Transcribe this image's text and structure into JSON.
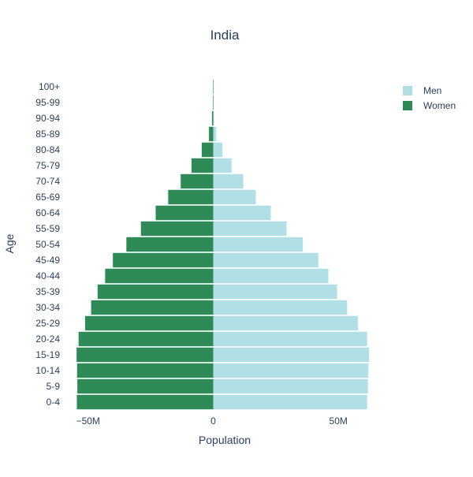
{
  "chart_data": {
    "type": "bar",
    "orientation": "horizontal",
    "layout": "population-pyramid",
    "title": "India",
    "xlabel": "Population",
    "ylabel": "Age",
    "categories": [
      "0-4",
      "5-9",
      "10-14",
      "15-19",
      "20-24",
      "25-29",
      "30-34",
      "35-39",
      "40-44",
      "45-49",
      "50-54",
      "55-59",
      "60-64",
      "65-69",
      "70-74",
      "75-79",
      "80-84",
      "85-89",
      "90-94",
      "95-99",
      "100+"
    ],
    "series": [
      {
        "name": "Men",
        "color": "#b0e0e6",
        "values": [
          61.5,
          61.8,
          62.0,
          62.3,
          61.5,
          57.8,
          53.5,
          49.5,
          46.0,
          42.0,
          35.8,
          29.3,
          23.0,
          17.0,
          12.0,
          7.3,
          3.7,
          1.2,
          0.3,
          0.1,
          0.02
        ]
      },
      {
        "name": "Women",
        "color": "#2e8b57",
        "values": [
          -54.5,
          -54.3,
          -54.4,
          -54.6,
          -53.8,
          -51.2,
          -48.8,
          -46.2,
          -43.2,
          -40.1,
          -34.7,
          -28.9,
          -23.0,
          -18.0,
          -13.0,
          -8.7,
          -4.6,
          -1.7,
          -0.5,
          -0.1,
          -0.02
        ]
      }
    ],
    "xticks": [
      -50,
      0,
      50
    ],
    "xtick_labels": [
      "−50M",
      "0",
      "50M"
    ],
    "value_unit": "millions",
    "xlim": [
      -60,
      66
    ],
    "barmode": "overlay",
    "legend": "top-right",
    "grid": false
  }
}
